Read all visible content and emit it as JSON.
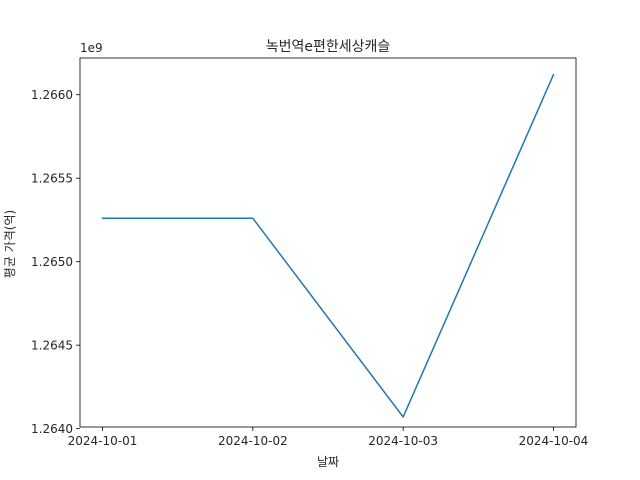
{
  "chart_data": {
    "type": "line",
    "title": "녹번역e편한세상캐슬",
    "xlabel": "날짜",
    "ylabel": "평균 가격(억)",
    "y_offset_label": "1e9",
    "x": [
      "2024-10-01",
      "2024-10-02",
      "2024-10-03",
      "2024-10-04"
    ],
    "series": [
      {
        "color": "#1f77b4",
        "values": [
          1265260000,
          1265260000,
          1264070000,
          1266120000
        ]
      }
    ],
    "ylim": [
      1264010000,
      1266220000
    ],
    "y_ticks": [
      1264000000,
      1264500000,
      1265000000,
      1265500000,
      1266000000
    ],
    "y_tick_labels": [
      "1.2640",
      "1.2645",
      "1.2650",
      "1.2655",
      "1.2660"
    ],
    "grid": false,
    "legend": "none"
  }
}
